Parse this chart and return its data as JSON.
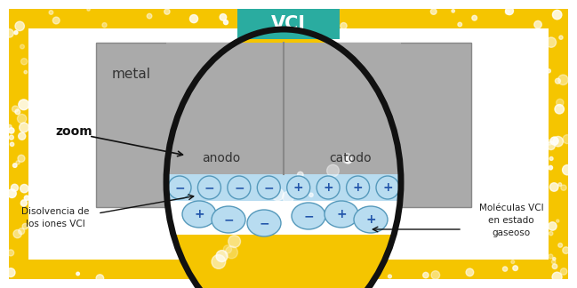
{
  "bg_color": "#ffffff",
  "yellow_color": "#F5C500",
  "white_color": "#ffffff",
  "gray_metal": "#AAAAAA",
  "gray_edge": "#888888",
  "teal_color": "#2AACA0",
  "ellipse_color": "#111111",
  "ion_band_color": "#B8DCF0",
  "ion_circle_fill": "#C5E5F5",
  "ion_circle_edge": "#5599BB",
  "ion_sign_color": "#2255AA",
  "text_dark": "#222222",
  "vci_text": "VCI",
  "vci_text_color": "#ffffff",
  "metal_label": "metal",
  "anodo_label": "anodo",
  "catodo_label": "catodo",
  "zoom_label": "zoom",
  "label_left_line1": "Disolvencia de",
  "label_left_line2": "los iones VCI",
  "label_right_line1": "Moléculas VCI",
  "label_right_line2": "en estado",
  "label_right_line3": "gaseoso",
  "figw": 6.49,
  "figh": 3.24,
  "dpi": 100
}
